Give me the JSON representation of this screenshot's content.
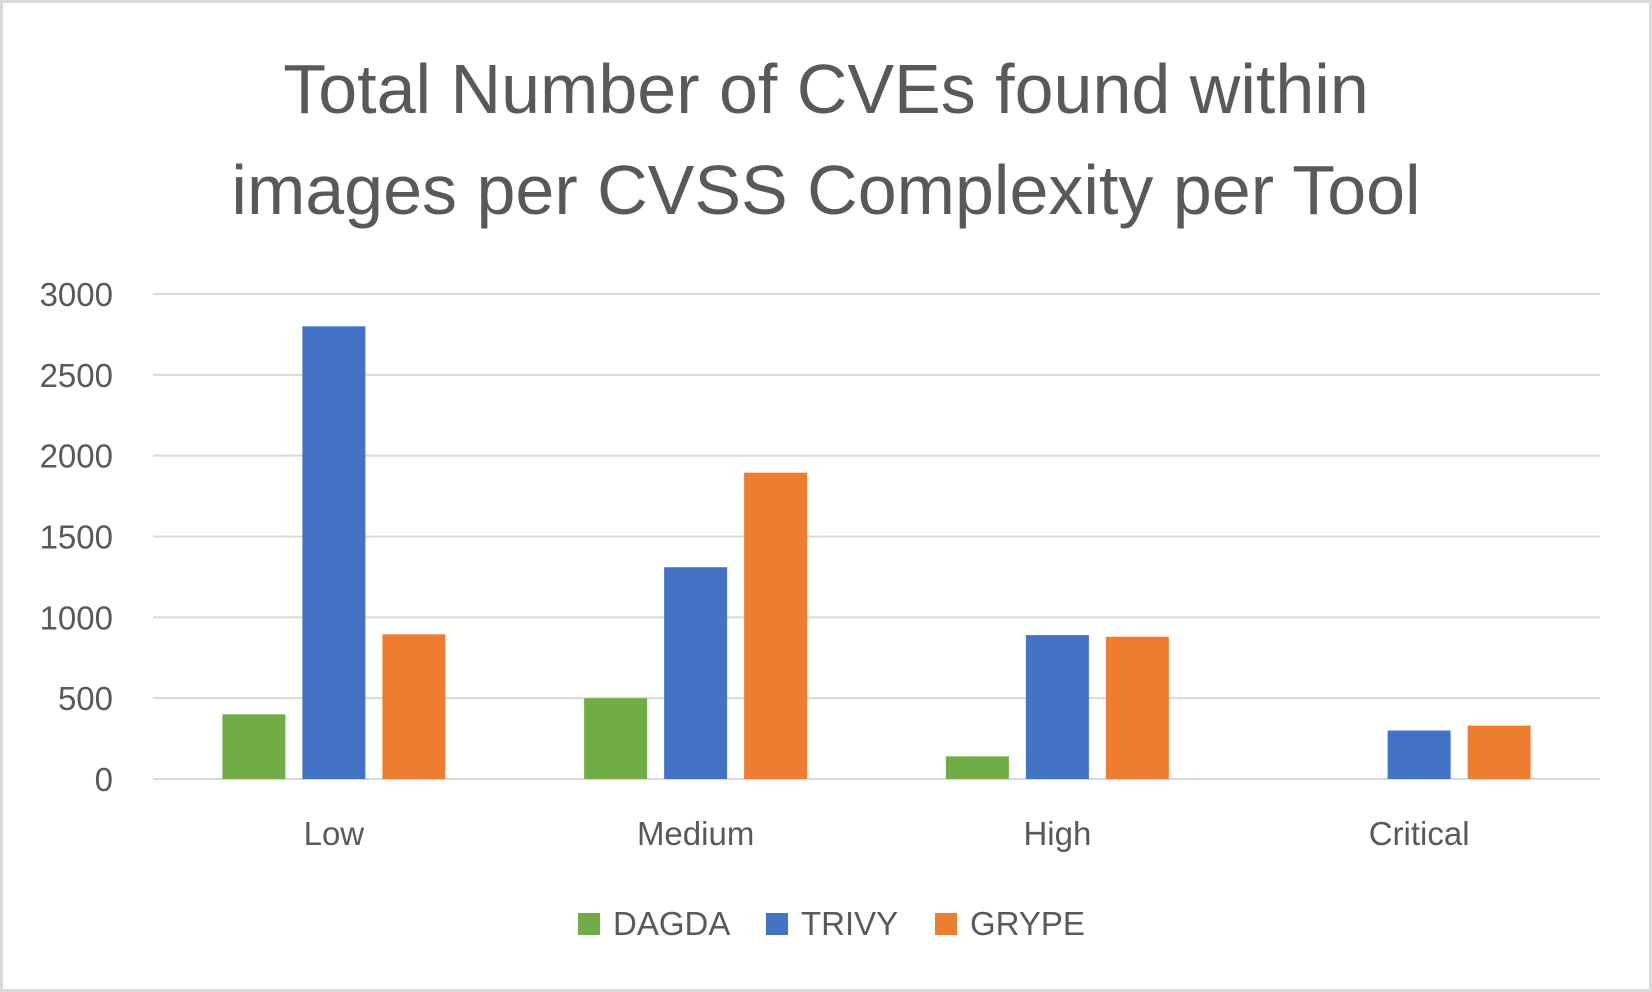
{
  "chart_data": {
    "type": "bar",
    "title": [
      "Total Number of CVEs found within",
      "images per CVSS Complexity per Tool"
    ],
    "xlabel": "",
    "ylabel": "",
    "categories": [
      "Low",
      "Medium",
      "High",
      "Critical"
    ],
    "series": [
      {
        "name": "DAGDA",
        "color": "#70ad47",
        "values": [
          400,
          500,
          140,
          0
        ]
      },
      {
        "name": "TRIVY",
        "color": "#4472c4",
        "values": [
          2800,
          1310,
          890,
          300
        ]
      },
      {
        "name": "GRYPE",
        "color": "#ed7d31",
        "values": [
          895,
          1895,
          880,
          330
        ]
      }
    ],
    "ylim": [
      0,
      3000
    ],
    "yticks": [
      "0",
      "500",
      "1000",
      "1500",
      "2000",
      "2500",
      "3000"
    ],
    "grid": true,
    "legend": "bottom"
  }
}
